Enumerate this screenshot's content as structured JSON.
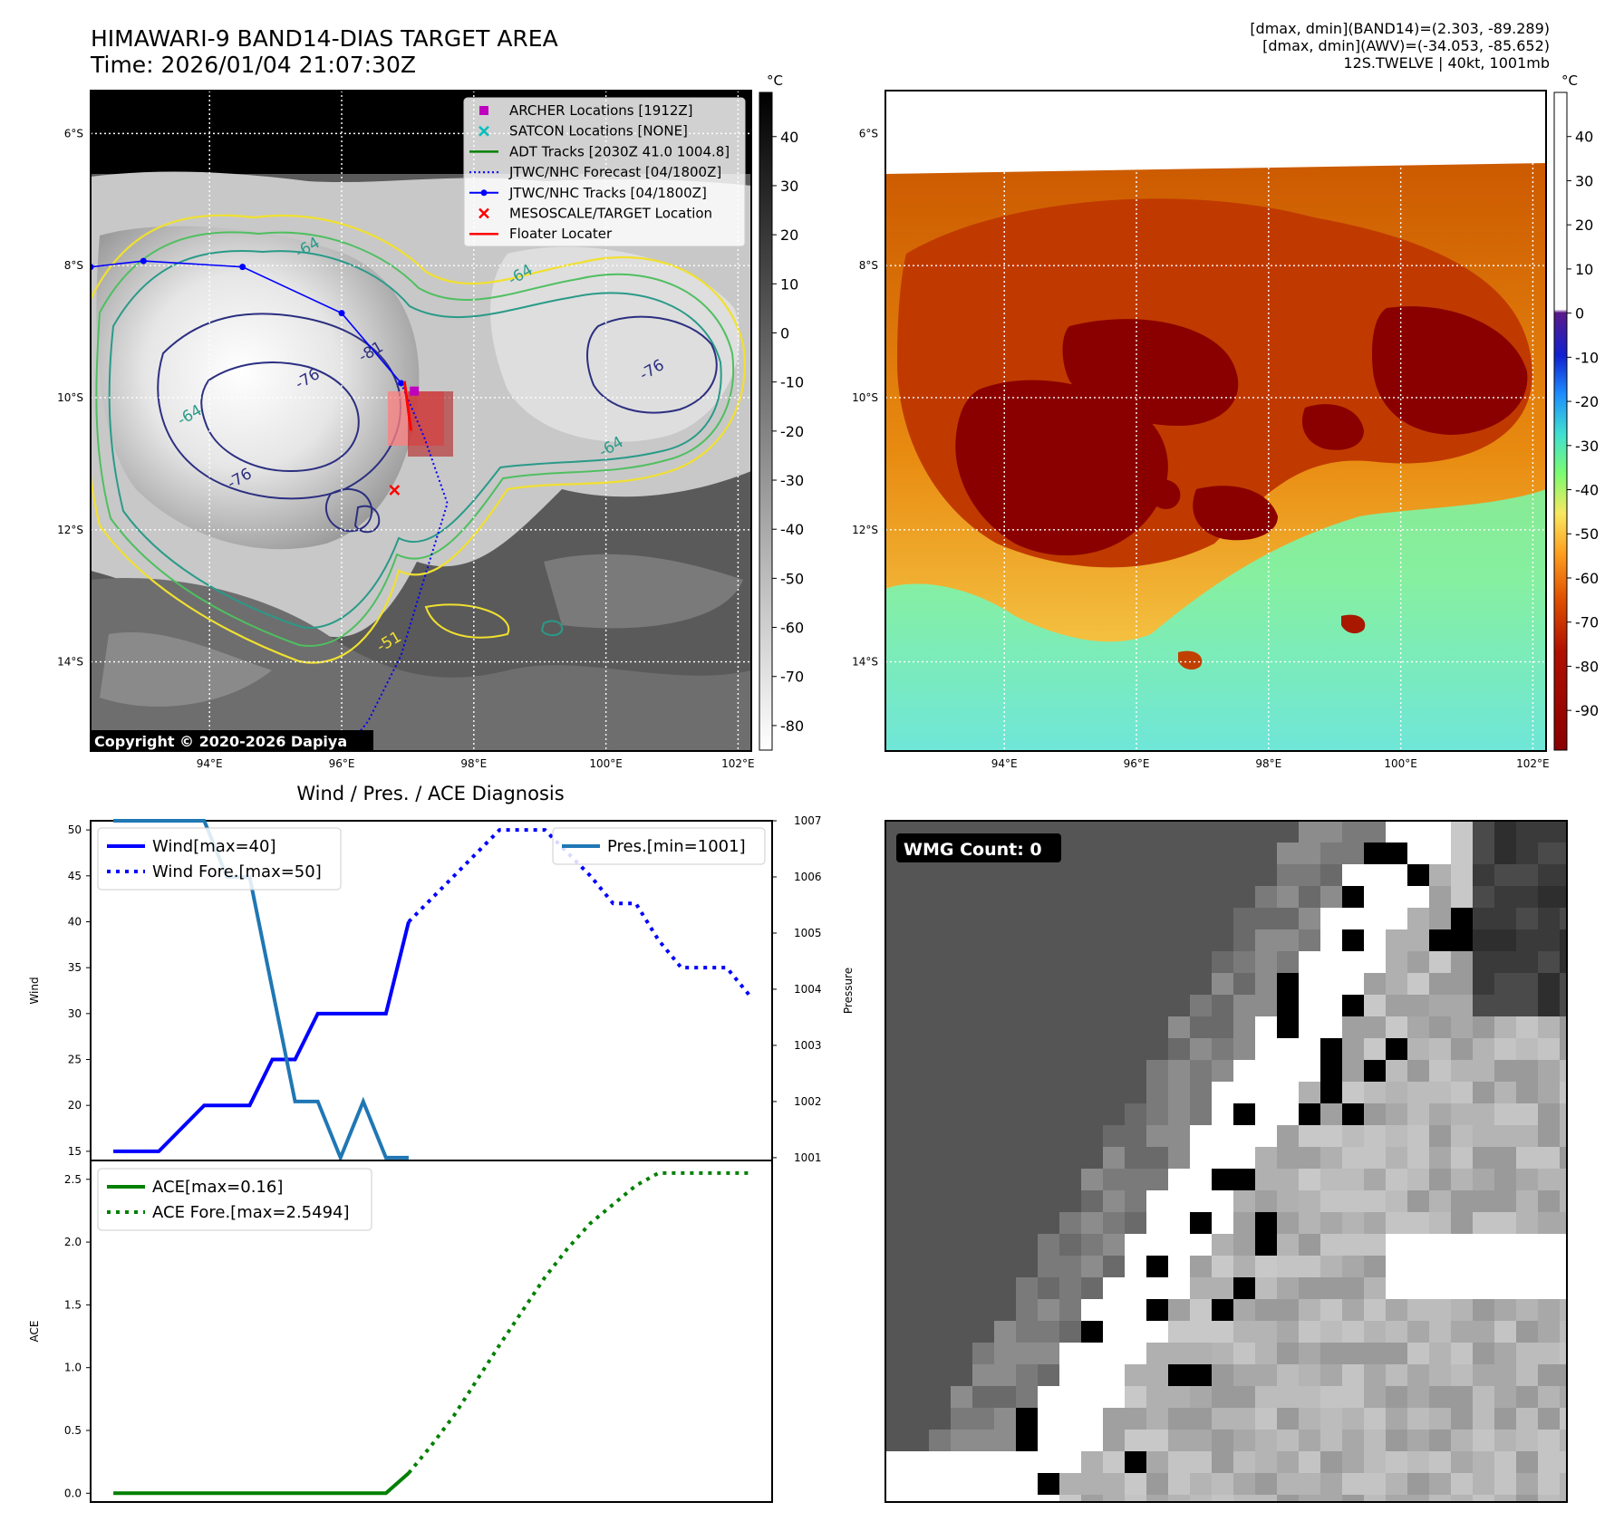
{
  "header": {
    "title_line1": "HIMAWARI-9 BAND14-DIAS TARGET AREA",
    "title_line2": "Time: 2026/01/04 21:07:30Z",
    "info_line1": "[dmax, dmin](BAND14)=(2.303, -89.289)",
    "info_line2": "[dmax, dmin](AWV)=(-34.053, -85.652)",
    "info_line3": "12S.TWELVE | 40kt, 1001mb"
  },
  "colors": {
    "wind": "#0000ff",
    "pressure": "#1f77b4",
    "ace": "#008000",
    "track": "#0000ff",
    "archer": "#bf00bf",
    "satcon": "#00bfbf",
    "adt": "#008000",
    "target": "#ff0000",
    "floater": "#ff0000",
    "contour_yellow": "#f0e030",
    "contour_green": "#4fbf60",
    "contour_teal": "#2a9a88",
    "contour_navy": "#2c2f80"
  },
  "map": {
    "lon_ticks": [
      "94°E",
      "96°E",
      "98°E",
      "100°E",
      "102°E"
    ],
    "lat_ticks": [
      "6°S",
      "8°S",
      "10°S",
      "12°S",
      "14°S"
    ],
    "lon_values": [
      94,
      96,
      98,
      100,
      102
    ],
    "lat_values": [
      6,
      8,
      10,
      12,
      14
    ],
    "extent": {
      "lon_min": 92.2,
      "lon_max": 102.2,
      "lat_min": 5.35,
      "lat_max": 15.35
    },
    "copyright": "Copyright © 2020-2026 Dapiya",
    "contour_labels": [
      "-64",
      "-64",
      "-64",
      "-64",
      "-76",
      "-76",
      "-76",
      "-81",
      "-51"
    ],
    "legend": [
      {
        "label": "ARCHER Locations [1912Z]",
        "symbol": "square",
        "color_key": "archer"
      },
      {
        "label": "SATCON Locations [NONE]",
        "symbol": "x",
        "color_key": "satcon"
      },
      {
        "label": "ADT Tracks [2030Z 41.0 1004.8]",
        "symbol": "line",
        "color_key": "adt"
      },
      {
        "label": "JTWC/NHC Forecast [04/1800Z]",
        "symbol": "dotted",
        "color_key": "track"
      },
      {
        "label": "JTWC/NHC Tracks [04/1800Z]",
        "symbol": "line-dot",
        "color_key": "track"
      },
      {
        "label": "MESOSCALE/TARGET Location",
        "symbol": "x",
        "color_key": "target"
      },
      {
        "label": "Floater Locater",
        "symbol": "line",
        "color_key": "floater"
      }
    ],
    "track_points": [
      [
        92.2,
        8.02
      ],
      [
        93.0,
        7.93
      ],
      [
        94.5,
        8.02
      ],
      [
        96.0,
        8.72
      ],
      [
        96.9,
        9.78
      ]
    ],
    "forecast_track": [
      [
        96.9,
        9.78
      ],
      [
        97.25,
        10.6
      ],
      [
        97.6,
        11.6
      ],
      [
        97.2,
        12.9
      ],
      [
        96.9,
        13.9
      ],
      [
        96.4,
        14.9
      ],
      [
        96.0,
        15.4
      ]
    ],
    "archer_point": [
      97.1,
      9.9
    ],
    "target_point": [
      96.8,
      11.4
    ],
    "floater_line": [
      [
        96.95,
        9.75
      ],
      [
        97.05,
        10.5
      ]
    ],
    "colorbar_gray": {
      "unit": "°C",
      "ticks": [
        40,
        30,
        20,
        10,
        0,
        -10,
        -20,
        -30,
        -40,
        -50,
        -60,
        -70,
        -80
      ],
      "range": [
        -85,
        49
      ]
    },
    "colorbar_color": {
      "unit": "°C",
      "ticks": [
        40,
        30,
        20,
        10,
        0,
        -10,
        -20,
        -30,
        -40,
        -50,
        -60,
        -70,
        -80,
        -90
      ],
      "range": [
        -99,
        50
      ]
    }
  },
  "chart_data": [
    {
      "type": "line",
      "title": "Wind / Pres. / ACE Diagnosis",
      "ylabel": "Wind",
      "ylabel_right": "Pressure",
      "ylim": [
        14,
        51
      ],
      "ylim_right": [
        1000.95,
        1007.0
      ],
      "xlim": [
        0,
        30
      ],
      "yticks": [
        15,
        20,
        25,
        30,
        35,
        40,
        45,
        50
      ],
      "yticks_right": [
        1001,
        1002,
        1003,
        1004,
        1005,
        1006,
        1007
      ],
      "series": [
        {
          "name": "Wind[max=40]",
          "axis": "left",
          "style": "solid",
          "color_key": "wind",
          "x": [
            1,
            3,
            5,
            7,
            8,
            9,
            10,
            11,
            12,
            13,
            14
          ],
          "y": [
            15,
            15,
            20,
            20,
            25,
            25,
            30,
            30,
            30,
            30,
            40
          ]
        },
        {
          "name": "Wind Fore.[max=50]",
          "axis": "left",
          "style": "dotted",
          "color_key": "wind",
          "x": [
            14,
            15,
            16,
            17,
            18,
            19,
            20,
            21,
            22,
            23,
            24,
            25,
            26,
            27,
            28,
            29
          ],
          "y": [
            40,
            42.5,
            45,
            47.5,
            50,
            50,
            50,
            47.5,
            45,
            42,
            42,
            38,
            35,
            35,
            35,
            32
          ]
        },
        {
          "name": "Pres.[min=1001]",
          "axis": "right",
          "style": "solid",
          "color_key": "pressure",
          "x": [
            1,
            5,
            6,
            7,
            8,
            9,
            10,
            11,
            12,
            13,
            14
          ],
          "y": [
            1007,
            1007,
            1006,
            1006,
            1004,
            1002,
            1002,
            1001,
            1002,
            1001,
            1001
          ]
        }
      ],
      "legend": "upper-left / upper-right"
    },
    {
      "type": "line",
      "ylabel": "ACE",
      "ylim": [
        -0.07,
        2.65
      ],
      "xlim": [
        0,
        30
      ],
      "yticks": [
        0.0,
        0.5,
        1.0,
        1.5,
        2.0,
        2.5
      ],
      "ytick_labels": [
        "0.0",
        "0.5",
        "1.0",
        "1.5",
        "2.0",
        "2.5"
      ],
      "series": [
        {
          "name": "ACE[max=0.16]",
          "style": "solid",
          "color_key": "ace",
          "x": [
            1,
            13,
            14
          ],
          "y": [
            0.0,
            0.0,
            0.16
          ]
        },
        {
          "name": "ACE Fore.[max=2.5494]",
          "style": "dotted",
          "color_key": "ace",
          "x": [
            14,
            15,
            16,
            17,
            18,
            19,
            20,
            21,
            22,
            23,
            24,
            25,
            26,
            27,
            28,
            29
          ],
          "y": [
            0.16,
            0.38,
            0.62,
            0.9,
            1.18,
            1.45,
            1.72,
            1.95,
            2.15,
            2.3,
            2.45,
            2.55,
            2.55,
            2.55,
            2.55,
            2.55
          ]
        }
      ],
      "legend": "upper-left"
    }
  ],
  "wmg": {
    "label": "WMG Count: 0"
  }
}
